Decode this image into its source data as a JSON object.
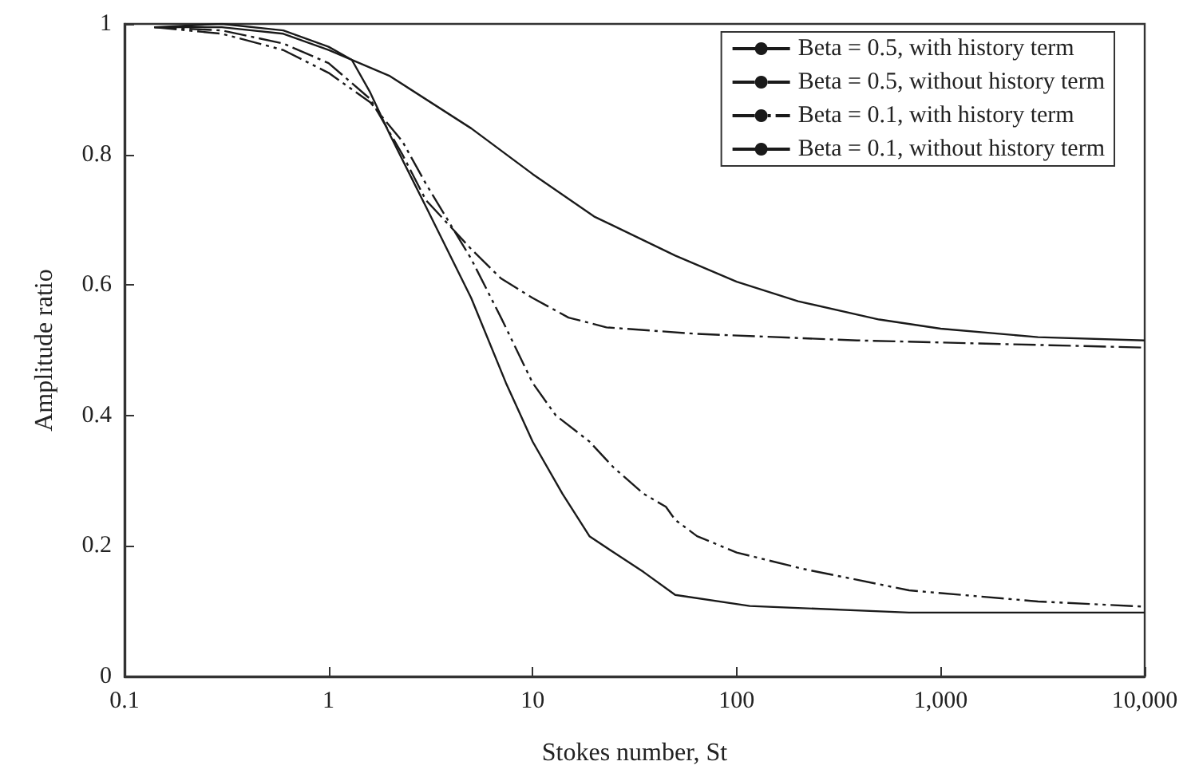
{
  "chart_data": {
    "type": "line",
    "xlabel": "Stokes number, St",
    "ylabel": "Amplitude ratio",
    "log": "x",
    "xlim": [
      0.1,
      10000
    ],
    "xticks": [
      0.1,
      1,
      10,
      100,
      {
        "value": 1000,
        "label": "1,000"
      },
      {
        "value": 10000,
        "label": "10,000"
      }
    ],
    "ylim": [
      0,
      1
    ],
    "yticks": [
      0,
      0.2,
      0.4,
      0.6,
      0.8,
      1
    ],
    "grid": false,
    "legend": "top right",
    "marker": "none",
    "series": [
      {
        "name": "Beta = 0.5, with history term",
        "color": "#1a1a1a",
        "line_style": "solid",
        "x": [
          0.14,
          0.3,
          0.6,
          1,
          2,
          5,
          10,
          20,
          50,
          100,
          200,
          500,
          1000,
          3000,
          10000
        ],
        "values": [
          0.995,
          0.995,
          0.985,
          0.96,
          0.92,
          0.84,
          0.77,
          0.705,
          0.645,
          0.605,
          0.575,
          0.547,
          0.533,
          0.52,
          0.515
        ]
      },
      {
        "name": "Beta = 0.5, without history term",
        "color": "#1a1a1a",
        "line_style": "dashed",
        "x": [
          0.14,
          0.3,
          0.6,
          1,
          1.6,
          2.3,
          3,
          5,
          7,
          10,
          15,
          23,
          64,
          390,
          10000
        ],
        "values": [
          0.995,
          0.99,
          0.97,
          0.94,
          0.885,
          0.8,
          0.73,
          0.655,
          0.61,
          0.58,
          0.55,
          0.535,
          0.525,
          0.515,
          0.504
        ]
      },
      {
        "name": "Beta = 0.1, with history term",
        "color": "#1a1a1a",
        "line_style": "dotted",
        "x": [
          0.14,
          0.3,
          0.6,
          1,
          1.6,
          2.3,
          3,
          5,
          7,
          10,
          13,
          19,
          25,
          35,
          45,
          50,
          64,
          100,
          211,
          700,
          3000,
          10000
        ],
        "values": [
          0.995,
          0.985,
          0.96,
          0.925,
          0.88,
          0.82,
          0.755,
          0.64,
          0.55,
          0.45,
          0.4,
          0.36,
          0.32,
          0.28,
          0.26,
          0.24,
          0.215,
          0.19,
          0.165,
          0.132,
          0.115,
          0.107
        ]
      },
      {
        "name": "Beta = 0.1, without history term",
        "color": "#1a1a1a",
        "line_style": "solid",
        "x": [
          0.14,
          0.3,
          0.6,
          1,
          1.3,
          1.6,
          2,
          3,
          5,
          7.4,
          10,
          14,
          19,
          25,
          35,
          50,
          116,
          700,
          10000
        ],
        "values": [
          0.995,
          1,
          0.99,
          0.965,
          0.945,
          0.895,
          0.83,
          0.72,
          0.58,
          0.45,
          0.36,
          0.28,
          0.215,
          0.19,
          0.16,
          0.125,
          0.108,
          0.098,
          0.098
        ]
      }
    ]
  }
}
